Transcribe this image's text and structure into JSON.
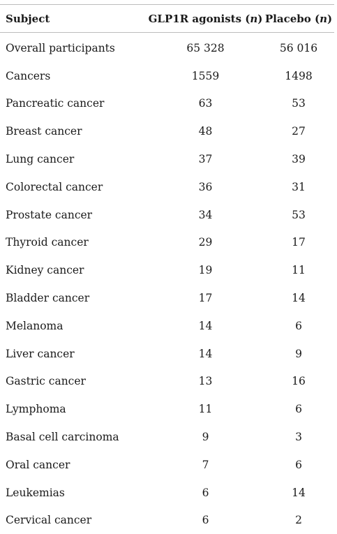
{
  "header": {
    "subject": "Subject",
    "glp1r_prefix": "GLP1R agonists (",
    "placebo_prefix": "Placebo (",
    "n": "n",
    "close": ")"
  },
  "rows": [
    {
      "subject": "Overall participants",
      "glp1r": "65 328",
      "placebo": "56 016"
    },
    {
      "subject": "Cancers",
      "glp1r": "1559",
      "placebo": "1498"
    },
    {
      "subject": "Pancreatic cancer",
      "glp1r": "63",
      "placebo": "53"
    },
    {
      "subject": "Breast cancer",
      "glp1r": "48",
      "placebo": "27"
    },
    {
      "subject": "Lung cancer",
      "glp1r": "37",
      "placebo": "39"
    },
    {
      "subject": "Colorectal cancer",
      "glp1r": "36",
      "placebo": "31"
    },
    {
      "subject": "Prostate cancer",
      "glp1r": "34",
      "placebo": "53"
    },
    {
      "subject": "Thyroid cancer",
      "glp1r": "29",
      "placebo": "17"
    },
    {
      "subject": "Kidney cancer",
      "glp1r": "19",
      "placebo": "11"
    },
    {
      "subject": "Bladder cancer",
      "glp1r": "17",
      "placebo": "14"
    },
    {
      "subject": "Melanoma",
      "glp1r": "14",
      "placebo": "6"
    },
    {
      "subject": "Liver cancer",
      "glp1r": "14",
      "placebo": "9"
    },
    {
      "subject": "Gastric cancer",
      "glp1r": "13",
      "placebo": "16"
    },
    {
      "subject": "Lymphoma",
      "glp1r": "11",
      "placebo": "6"
    },
    {
      "subject": "Basal cell carcinoma",
      "glp1r": "9",
      "placebo": "3"
    },
    {
      "subject": "Oral cancer",
      "glp1r": "7",
      "placebo": "6"
    },
    {
      "subject": "Leukemias",
      "glp1r": "6",
      "placebo": "14"
    },
    {
      "subject": "Cervical cancer",
      "glp1r": "6",
      "placebo": "2"
    }
  ]
}
